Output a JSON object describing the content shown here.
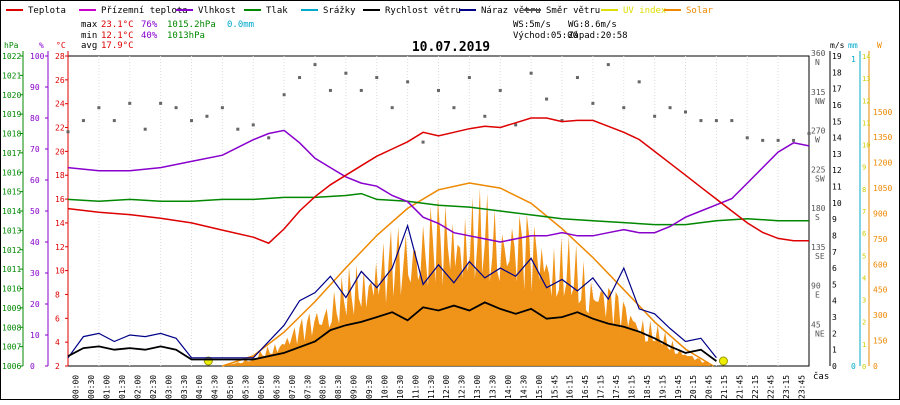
{
  "chart_data": {
    "type": "line",
    "title": "10.07.2019",
    "xlabel": "čas",
    "legend": [
      {
        "label": "Teplota",
        "color": "#dd0000"
      },
      {
        "label": "Přízemní teplota",
        "color": "#cc00cc"
      },
      {
        "label": "Vlhkost",
        "color": "#8800cc"
      },
      {
        "label": "Tlak",
        "color": "#008800"
      },
      {
        "label": "Srážky",
        "color": "#00aacc"
      },
      {
        "label": "Rychlost větru",
        "color": "#000000"
      },
      {
        "label": "Náraz větru",
        "color": "#000088"
      },
      {
        "label": "Směr větru",
        "color": "#555555"
      },
      {
        "label": "UV index",
        "color": "#dddd00"
      },
      {
        "label": "Solar",
        "color": "#ee8800"
      }
    ],
    "stats": {
      "max_label": "max",
      "min_label": "min",
      "avg_label": "avg",
      "max_temp": "23.1°C",
      "max_hum": "76%",
      "max_press": "1015.2hPa",
      "max_rain": "0.0mm",
      "min_temp": "12.1°C",
      "min_hum": "40%",
      "min_press": "1013hPa",
      "avg_temp": "17.9°C",
      "ws": "WS:5m/s",
      "wg": "WG:8.6m/s",
      "sunrise": "Východ:05:00",
      "sunset": "Západ:20:58"
    },
    "axes": {
      "hpa_unit": "hPa",
      "hpa_ticks": [
        "1022",
        "1021",
        "1020",
        "1019",
        "1018",
        "1017",
        "1016",
        "1015",
        "1014",
        "1013",
        "1012",
        "1011",
        "1010",
        "1009",
        "1008",
        "1007",
        "1006"
      ],
      "pct_unit": "%",
      "pct_ticks": [
        "100",
        "90",
        "80",
        "70",
        "60",
        "50",
        "40",
        "30",
        "20",
        "10",
        "0"
      ],
      "c_unit": "°C",
      "c_ticks": [
        "28",
        "26",
        "24",
        "22",
        "20",
        "18",
        "16",
        "14",
        "12",
        "10",
        "8",
        "6",
        "4",
        "2"
      ],
      "dir_ticks": [
        {
          "deg": "360",
          "lbl": "N"
        },
        {
          "deg": "315",
          "lbl": "NW"
        },
        {
          "deg": "270",
          "lbl": "W"
        },
        {
          "deg": "225",
          "lbl": "SW"
        },
        {
          "deg": "180",
          "lbl": "S"
        },
        {
          "deg": "135",
          "lbl": "SE"
        },
        {
          "deg": "90",
          "lbl": "E"
        },
        {
          "deg": "45",
          "lbl": "NE"
        }
      ],
      "ms_unit": "m/s",
      "ms_ticks": [
        "19",
        "18",
        "17",
        "16",
        "15",
        "14",
        "13",
        "12",
        "11",
        "10",
        "9",
        "8",
        "7",
        "6",
        "5",
        "4",
        "3",
        "2",
        "1",
        "0"
      ],
      "mm_unit": "mm",
      "mm_ticks": [
        "1",
        "0"
      ],
      "w_unit": "W",
      "w_ticks": [
        "1500",
        "1350",
        "1200",
        "1050",
        "900",
        "750",
        "600",
        "450",
        "300",
        "150",
        "0"
      ],
      "uv_ticks": [
        "14",
        "13",
        "12",
        "11",
        "10",
        "9",
        "8",
        "7",
        "6",
        "5",
        "4",
        "3",
        "2",
        "1",
        "0"
      ],
      "time_labels": [
        "00:00",
        "00:30",
        "01:00",
        "01:30",
        "02:00",
        "02:30",
        "03:00",
        "03:30",
        "04:00",
        "04:30",
        "05:00",
        "05:30",
        "06:00",
        "06:30",
        "07:00",
        "07:30",
        "08:00",
        "08:30",
        "09:00",
        "09:30",
        "10:00",
        "10:30",
        "11:00",
        "11:30",
        "12:00",
        "12:30",
        "13:00",
        "13:30",
        "14:00",
        "14:30",
        "15:00",
        "15:45",
        "16:15",
        "16:45",
        "17:15",
        "17:45",
        "18:15",
        "18:45",
        "19:15",
        "19:45",
        "20:15",
        "20:45",
        "21:15",
        "21:45",
        "22:15",
        "22:45",
        "23:15",
        "23:45"
      ]
    },
    "x_hours": [
      0,
      1,
      2,
      3,
      4,
      5,
      6,
      7,
      8,
      9,
      10,
      11,
      12,
      13,
      14,
      15,
      16,
      17,
      18,
      19,
      20,
      21,
      22,
      23,
      24
    ],
    "series": [
      {
        "name": "Teplota",
        "color": "#dd0000",
        "unit": "°C",
        "points": [
          [
            0,
            15.2
          ],
          [
            1,
            14.9
          ],
          [
            2,
            14.7
          ],
          [
            3,
            14.4
          ],
          [
            4,
            14.0
          ],
          [
            5,
            13.4
          ],
          [
            6,
            12.8
          ],
          [
            6.5,
            12.3
          ],
          [
            7,
            13.5
          ],
          [
            7.5,
            15.0
          ],
          [
            8,
            16.2
          ],
          [
            8.5,
            17.2
          ],
          [
            9,
            18.0
          ],
          [
            9.5,
            18.8
          ],
          [
            10,
            19.6
          ],
          [
            10.5,
            20.2
          ],
          [
            11,
            20.8
          ],
          [
            11.5,
            21.6
          ],
          [
            12,
            21.3
          ],
          [
            12.5,
            21.6
          ],
          [
            13,
            21.9
          ],
          [
            13.5,
            22.1
          ],
          [
            14,
            22.0
          ],
          [
            14.5,
            22.4
          ],
          [
            15,
            22.8
          ],
          [
            15.5,
            22.8
          ],
          [
            16,
            22.5
          ],
          [
            16.5,
            22.6
          ],
          [
            17,
            22.6
          ],
          [
            17.5,
            22.1
          ],
          [
            18,
            21.6
          ],
          [
            18.5,
            21.0
          ],
          [
            19,
            20.0
          ],
          [
            19.5,
            19.0
          ],
          [
            20,
            18.0
          ],
          [
            20.5,
            17.0
          ],
          [
            21,
            16.0
          ],
          [
            21.5,
            15.0
          ],
          [
            22,
            14.0
          ],
          [
            22.5,
            13.2
          ],
          [
            23,
            12.7
          ],
          [
            23.5,
            12.5
          ],
          [
            24,
            12.5
          ]
        ]
      },
      {
        "name": "Vlhkost",
        "color": "#8800cc",
        "unit": "%",
        "points": [
          [
            0,
            64
          ],
          [
            1,
            63
          ],
          [
            2,
            63
          ],
          [
            3,
            64
          ],
          [
            4,
            66
          ],
          [
            5,
            68
          ],
          [
            6,
            73
          ],
          [
            6.5,
            75
          ],
          [
            7,
            76
          ],
          [
            7.5,
            72
          ],
          [
            8,
            67
          ],
          [
            8.5,
            64
          ],
          [
            9,
            61
          ],
          [
            9.5,
            59
          ],
          [
            10,
            58
          ],
          [
            10.5,
            55
          ],
          [
            11,
            53
          ],
          [
            11.5,
            48
          ],
          [
            12,
            46
          ],
          [
            12.5,
            43
          ],
          [
            13,
            42
          ],
          [
            13.5,
            41
          ],
          [
            14,
            40
          ],
          [
            14.5,
            41
          ],
          [
            15,
            42
          ],
          [
            15.5,
            42
          ],
          [
            16,
            43
          ],
          [
            16.5,
            42
          ],
          [
            17,
            42
          ],
          [
            17.5,
            43
          ],
          [
            18,
            44
          ],
          [
            18.5,
            43
          ],
          [
            19,
            43
          ],
          [
            19.5,
            45
          ],
          [
            20,
            48
          ],
          [
            20.5,
            50
          ],
          [
            21,
            52
          ],
          [
            21.5,
            54
          ],
          [
            22,
            59
          ],
          [
            22.5,
            64
          ],
          [
            23,
            69
          ],
          [
            23.5,
            72
          ],
          [
            24,
            71
          ]
        ]
      },
      {
        "name": "Tlak",
        "color": "#008800",
        "unit": "hPa",
        "points": [
          [
            0,
            1014.6
          ],
          [
            1,
            1014.5
          ],
          [
            2,
            1014.6
          ],
          [
            3,
            1014.5
          ],
          [
            4,
            1014.5
          ],
          [
            5,
            1014.6
          ],
          [
            6,
            1014.6
          ],
          [
            7,
            1014.7
          ],
          [
            8,
            1014.7
          ],
          [
            9,
            1014.8
          ],
          [
            9.5,
            1014.9
          ],
          [
            10,
            1014.6
          ],
          [
            11,
            1014.5
          ],
          [
            12,
            1014.3
          ],
          [
            13,
            1014.2
          ],
          [
            14,
            1014.0
          ],
          [
            15,
            1013.8
          ],
          [
            16,
            1013.6
          ],
          [
            17,
            1013.5
          ],
          [
            18,
            1013.4
          ],
          [
            19,
            1013.3
          ],
          [
            20,
            1013.3
          ],
          [
            21,
            1013.5
          ],
          [
            22,
            1013.6
          ],
          [
            23,
            1013.5
          ],
          [
            24,
            1013.5
          ]
        ]
      },
      {
        "name": "Solar",
        "color": "#ee8800",
        "unit": "W",
        "points": [
          [
            5.0,
            0
          ],
          [
            6,
            60
          ],
          [
            7,
            200
          ],
          [
            8,
            380
          ],
          [
            9,
            580
          ],
          [
            10,
            770
          ],
          [
            11,
            930
          ],
          [
            12,
            1040
          ],
          [
            13,
            1080
          ],
          [
            14,
            1050
          ],
          [
            15,
            960
          ],
          [
            16,
            810
          ],
          [
            17,
            640
          ],
          [
            18,
            450
          ],
          [
            19,
            260
          ],
          [
            20,
            100
          ],
          [
            20.9,
            0
          ]
        ]
      },
      {
        "name": "Rychlost větru",
        "color": "#000000",
        "unit": "m/s",
        "points": [
          [
            0,
            0.6
          ],
          [
            0.5,
            1.1
          ],
          [
            1,
            1.2
          ],
          [
            1.5,
            1.0
          ],
          [
            2,
            1.1
          ],
          [
            2.5,
            1.0
          ],
          [
            3,
            1.2
          ],
          [
            3.5,
            1.0
          ],
          [
            4,
            0.4
          ],
          [
            6,
            0.4
          ],
          [
            7,
            0.8
          ],
          [
            8,
            1.5
          ],
          [
            8.5,
            2.2
          ],
          [
            9,
            2.5
          ],
          [
            9.5,
            2.7
          ],
          [
            10,
            3.0
          ],
          [
            10.5,
            3.3
          ],
          [
            11,
            2.8
          ],
          [
            11.5,
            3.6
          ],
          [
            12,
            3.4
          ],
          [
            12.5,
            3.7
          ],
          [
            13,
            3.4
          ],
          [
            13.5,
            3.9
          ],
          [
            14,
            3.5
          ],
          [
            14.5,
            3.2
          ],
          [
            15,
            3.5
          ],
          [
            15.5,
            2.9
          ],
          [
            16,
            3.0
          ],
          [
            16.5,
            3.3
          ],
          [
            17,
            2.9
          ],
          [
            17.5,
            2.6
          ],
          [
            18,
            2.4
          ],
          [
            18.5,
            2.1
          ],
          [
            19,
            1.7
          ],
          [
            19.5,
            1.2
          ],
          [
            20,
            0.8
          ],
          [
            20.5,
            1.0
          ],
          [
            21,
            0.3
          ]
        ]
      },
      {
        "name": "Náraz větru",
        "color": "#000088",
        "unit": "m/s",
        "points": [
          [
            0,
            0.5
          ],
          [
            0.5,
            1.8
          ],
          [
            1,
            2.0
          ],
          [
            1.5,
            1.5
          ],
          [
            2,
            1.9
          ],
          [
            2.5,
            1.8
          ],
          [
            3,
            2.0
          ],
          [
            3.5,
            1.7
          ],
          [
            4,
            0.5
          ],
          [
            6,
            0.5
          ],
          [
            7,
            2.5
          ],
          [
            7.5,
            4.0
          ],
          [
            8,
            4.5
          ],
          [
            8.5,
            5.5
          ],
          [
            9,
            4.2
          ],
          [
            9.5,
            5.8
          ],
          [
            10,
            4.8
          ],
          [
            10.5,
            6.0
          ],
          [
            11,
            8.6
          ],
          [
            11.5,
            5.0
          ],
          [
            12,
            6.2
          ],
          [
            12.5,
            5.1
          ],
          [
            13,
            6.4
          ],
          [
            13.5,
            5.4
          ],
          [
            14,
            6.0
          ],
          [
            14.5,
            5.5
          ],
          [
            15,
            6.6
          ],
          [
            15.5,
            4.8
          ],
          [
            16,
            5.3
          ],
          [
            16.5,
            4.6
          ],
          [
            17,
            5.4
          ],
          [
            17.5,
            4.1
          ],
          [
            18,
            6.0
          ],
          [
            18.5,
            3.5
          ],
          [
            19,
            3.2
          ],
          [
            19.5,
            2.3
          ],
          [
            20,
            1.5
          ],
          [
            20.5,
            1.7
          ],
          [
            21,
            0.5
          ]
        ]
      }
    ],
    "wind_direction_points": [
      [
        0,
        272
      ],
      [
        0.5,
        285
      ],
      [
        1,
        300
      ],
      [
        1.5,
        285
      ],
      [
        2,
        305
      ],
      [
        2.5,
        275
      ],
      [
        3,
        305
      ],
      [
        3.5,
        300
      ],
      [
        4,
        285
      ],
      [
        4.5,
        290
      ],
      [
        5,
        300
      ],
      [
        5.5,
        275
      ],
      [
        6,
        280
      ],
      [
        6.5,
        265
      ],
      [
        7,
        315
      ],
      [
        7.5,
        335
      ],
      [
        8,
        350
      ],
      [
        8.5,
        320
      ],
      [
        9,
        340
      ],
      [
        9.5,
        320
      ],
      [
        10,
        335
      ],
      [
        10.5,
        300
      ],
      [
        11,
        330
      ],
      [
        11.5,
        260
      ],
      [
        12,
        320
      ],
      [
        12.5,
        300
      ],
      [
        13,
        335
      ],
      [
        13.5,
        290
      ],
      [
        14,
        320
      ],
      [
        14.5,
        280
      ],
      [
        15,
        340
      ],
      [
        15.5,
        310
      ],
      [
        16,
        285
      ],
      [
        16.5,
        335
      ],
      [
        17,
        305
      ],
      [
        17.5,
        350
      ],
      [
        18,
        300
      ],
      [
        18.5,
        330
      ],
      [
        19,
        290
      ],
      [
        19.5,
        300
      ],
      [
        20,
        295
      ],
      [
        20.5,
        285
      ],
      [
        21,
        285
      ],
      [
        21.5,
        285
      ],
      [
        22,
        265
      ],
      [
        22.5,
        262
      ],
      [
        23,
        262
      ],
      [
        23.5,
        262
      ],
      [
        24,
        270
      ]
    ]
  }
}
